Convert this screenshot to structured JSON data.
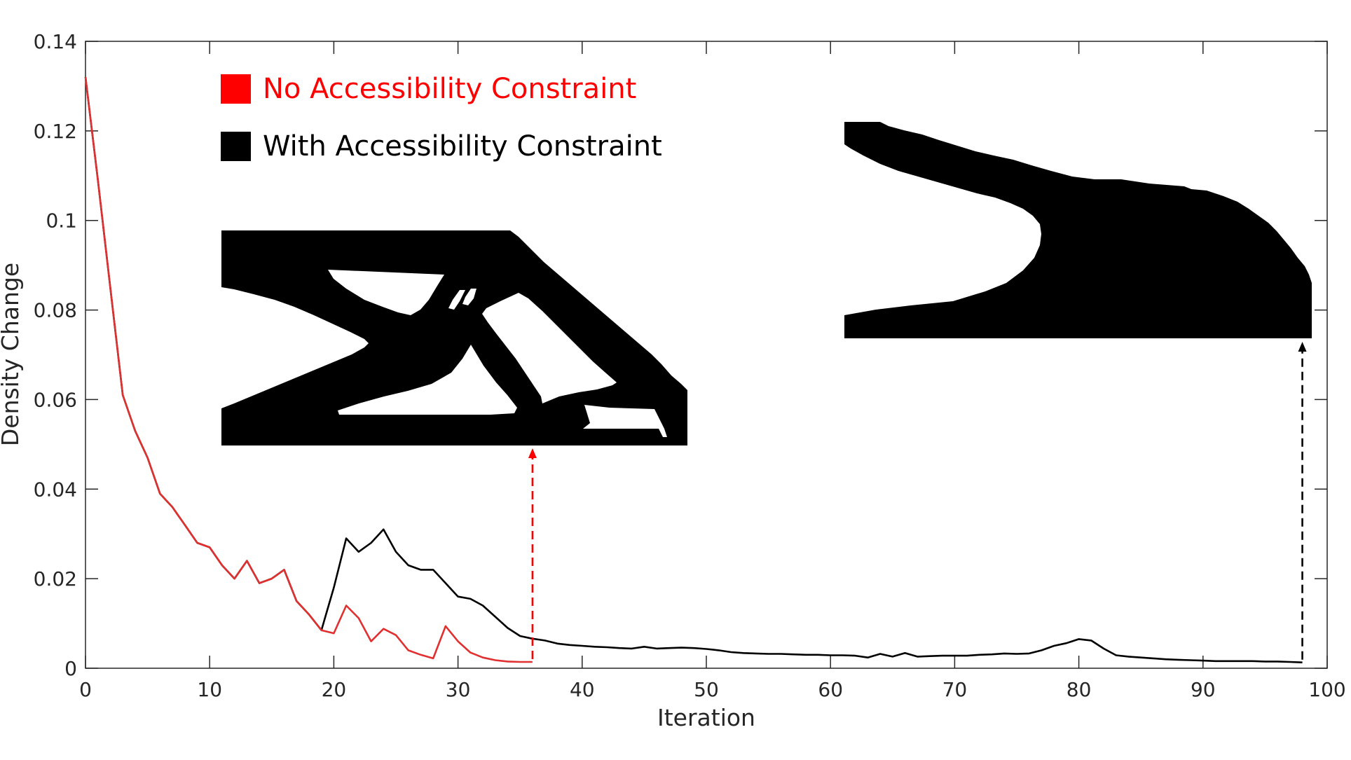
{
  "chart_data": {
    "type": "line",
    "title": "",
    "xlabel": "Iteration",
    "ylabel": "Density Change",
    "xlim": [
      0,
      100
    ],
    "ylim": [
      0,
      0.14
    ],
    "x_ticks": [
      0,
      10,
      20,
      30,
      40,
      50,
      60,
      70,
      80,
      90,
      100
    ],
    "y_ticks": [
      0,
      0.02,
      0.04,
      0.06,
      0.08,
      0.1,
      0.12,
      0.14
    ],
    "x_tick_labels": [
      "0",
      "10",
      "20",
      "30",
      "40",
      "50",
      "60",
      "70",
      "80",
      "90",
      "100"
    ],
    "y_tick_labels": [
      "0",
      "0.02",
      "0.04",
      "0.06",
      "0.08",
      "0.1",
      "0.12",
      "0.14"
    ],
    "grid": false,
    "legend_position": "top-left",
    "series": [
      {
        "name": "No Accessibility Constraint",
        "color": "#ff0000",
        "line_color": "#e03030",
        "x": [
          0,
          1,
          2,
          3,
          4,
          5,
          6,
          7,
          8,
          9,
          10,
          11,
          12,
          13,
          14,
          15,
          16,
          17,
          18,
          19,
          20,
          21,
          22,
          23,
          24,
          25,
          26,
          27,
          28,
          29,
          30,
          31,
          32,
          33,
          34,
          35,
          36
        ],
        "y": [
          0.132,
          0.109,
          0.085,
          0.061,
          0.053,
          0.047,
          0.039,
          0.036,
          0.032,
          0.028,
          0.027,
          0.023,
          0.02,
          0.024,
          0.019,
          0.02,
          0.022,
          0.015,
          0.012,
          0.0085,
          0.0078,
          0.014,
          0.0112,
          0.006,
          0.0088,
          0.0074,
          0.004,
          0.003,
          0.0022,
          0.0094,
          0.006,
          0.0035,
          0.0024,
          0.0018,
          0.0015,
          0.0014,
          0.0014
        ]
      },
      {
        "name": "With Accessibility Constraint",
        "color": "#000000",
        "line_color": "#000000",
        "x": [
          0,
          1,
          2,
          3,
          4,
          5,
          6,
          7,
          8,
          9,
          10,
          11,
          12,
          13,
          14,
          15,
          16,
          17,
          18,
          19,
          20,
          21,
          22,
          23,
          24,
          25,
          26,
          27,
          28,
          29,
          30,
          31,
          32,
          33,
          34,
          35,
          36,
          37,
          38,
          39,
          40,
          41,
          42,
          43,
          44,
          45,
          46,
          47,
          48,
          49,
          50,
          51,
          52,
          53,
          54,
          55,
          56,
          57,
          58,
          59,
          60,
          61,
          62,
          63,
          64,
          65,
          66,
          67,
          68,
          69,
          70,
          71,
          72,
          73,
          74,
          75,
          76,
          77,
          78,
          79,
          80,
          81,
          82,
          83,
          84,
          85,
          86,
          87,
          88,
          89,
          90,
          91,
          92,
          93,
          94,
          95,
          96,
          97,
          98
        ],
        "y": [
          0.132,
          0.109,
          0.085,
          0.061,
          0.053,
          0.047,
          0.039,
          0.036,
          0.032,
          0.028,
          0.027,
          0.023,
          0.02,
          0.024,
          0.019,
          0.02,
          0.022,
          0.015,
          0.012,
          0.0085,
          0.018,
          0.029,
          0.026,
          0.028,
          0.031,
          0.026,
          0.023,
          0.022,
          0.022,
          0.019,
          0.016,
          0.0155,
          0.014,
          0.0115,
          0.009,
          0.0072,
          0.0066,
          0.0062,
          0.0055,
          0.0052,
          0.005,
          0.0048,
          0.0047,
          0.0045,
          0.0044,
          0.0048,
          0.0044,
          0.0045,
          0.0046,
          0.0045,
          0.0043,
          0.004,
          0.0036,
          0.0034,
          0.0033,
          0.0032,
          0.0032,
          0.0031,
          0.003,
          0.003,
          0.0029,
          0.0029,
          0.0028,
          0.0024,
          0.0032,
          0.0026,
          0.0034,
          0.0026,
          0.0027,
          0.0028,
          0.0028,
          0.0028,
          0.003,
          0.0031,
          0.0033,
          0.0032,
          0.0033,
          0.004,
          0.005,
          0.0056,
          0.0065,
          0.0062,
          0.0044,
          0.0029,
          0.0026,
          0.0024,
          0.0022,
          0.002,
          0.0019,
          0.0018,
          0.0017,
          0.0016,
          0.0016,
          0.0016,
          0.0016,
          0.0015,
          0.0015,
          0.0014,
          0.0013
        ]
      }
    ],
    "annotations": [
      {
        "type": "arrow",
        "series": "No Accessibility Constraint",
        "x": 36,
        "style": "dashed",
        "color": "#ff0000"
      },
      {
        "type": "arrow",
        "series": "With Accessibility Constraint",
        "x": 98,
        "style": "dashed",
        "color": "#000000"
      }
    ],
    "inset_images": [
      {
        "depicts": "truss-like black topology structure",
        "series": "No Accessibility Constraint"
      },
      {
        "depicts": "solid cantilever black topology structure",
        "series": "With Accessibility Constraint"
      }
    ]
  }
}
